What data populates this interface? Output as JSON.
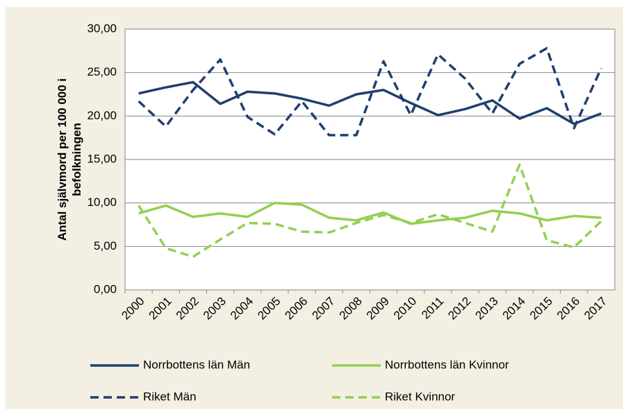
{
  "chart_data": {
    "type": "line",
    "y_axis_label": "Antal självmord per 100 000 i befolkningen",
    "categories": [
      "2000",
      "2001",
      "2002",
      "2003",
      "2004",
      "2005",
      "2006",
      "2007",
      "2008",
      "2009",
      "2010",
      "2011",
      "2012",
      "2013",
      "2014",
      "2015",
      "2016",
      "2017"
    ],
    "series": [
      {
        "name": "Norrbottens län Män",
        "color": "#1f3f6e",
        "line_style": "solid",
        "values": [
          22.6,
          23.3,
          23.9,
          21.4,
          22.8,
          22.6,
          22.0,
          21.2,
          22.5,
          23.0,
          21.5,
          20.1,
          20.8,
          21.8,
          19.7,
          20.9,
          19.1,
          20.3
        ]
      },
      {
        "name": "Norrbottens län Kvinnor",
        "color": "#92d050",
        "line_style": "solid",
        "values": [
          8.8,
          9.7,
          8.4,
          8.8,
          8.4,
          10.0,
          9.8,
          8.3,
          8.0,
          8.9,
          7.6,
          8.0,
          8.3,
          9.1,
          8.8,
          8.0,
          8.5,
          8.3
        ]
      },
      {
        "name": "Riket Män",
        "color": "#1f3f6e",
        "line_style": "dashed",
        "values": [
          21.7,
          18.8,
          23.0,
          26.5,
          19.9,
          17.9,
          21.7,
          17.8,
          17.8,
          26.3,
          20.1,
          27.1,
          24.3,
          20.3,
          26.0,
          27.8,
          18.6,
          25.5
        ]
      },
      {
        "name": "Riket Kvinnor",
        "color": "#92d050",
        "line_style": "dashed",
        "values": [
          9.7,
          4.8,
          3.8,
          5.8,
          7.7,
          7.6,
          6.7,
          6.6,
          7.7,
          8.6,
          7.7,
          8.7,
          7.7,
          6.7,
          14.4,
          5.7,
          4.9,
          7.9
        ]
      }
    ],
    "ylim": [
      0,
      30
    ],
    "yticks": [
      {
        "value": 0,
        "label": "0,00"
      },
      {
        "value": 5,
        "label": "5,00"
      },
      {
        "value": 10,
        "label": "10,00"
      },
      {
        "value": 15,
        "label": "15,00"
      },
      {
        "value": 20,
        "label": "20,00"
      },
      {
        "value": 25,
        "label": "25,00"
      },
      {
        "value": 30,
        "label": "30,00"
      }
    ],
    "grid": true,
    "legend": "bottom"
  }
}
